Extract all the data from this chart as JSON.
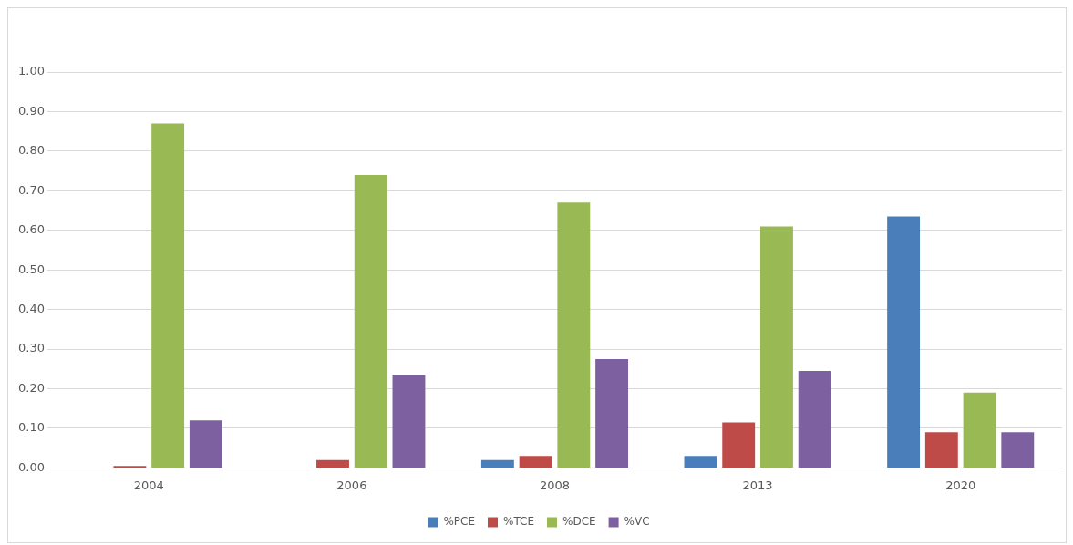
{
  "chart_data": {
    "type": "bar",
    "categories": [
      "2004",
      "2006",
      "2008",
      "2013",
      "2020"
    ],
    "series": [
      {
        "name": "%PCE",
        "color": "#4a7ebb",
        "values": [
          0,
          0,
          0.02,
          0.03,
          0.635
        ]
      },
      {
        "name": "%TCE",
        "color": "#be4b48",
        "values": [
          0.005,
          0.02,
          0.03,
          0.115,
          0.09
        ]
      },
      {
        "name": "%DCE",
        "color": "#98b954",
        "values": [
          0.87,
          0.74,
          0.67,
          0.61,
          0.19
        ]
      },
      {
        "name": "%VC",
        "color": "#7d60a0",
        "values": [
          0.12,
          0.235,
          0.275,
          0.245,
          0.09
        ]
      }
    ],
    "ylim": [
      0,
      1
    ],
    "yticks": [
      {
        "value": 0,
        "label": "0.00"
      },
      {
        "value": 0.1,
        "label": "0.10"
      },
      {
        "value": 0.2,
        "label": "0.20"
      },
      {
        "value": 0.3,
        "label": "0.30"
      },
      {
        "value": 0.4,
        "label": "0.40"
      },
      {
        "value": 0.5,
        "label": "0.50"
      },
      {
        "value": 0.6,
        "label": "0.60"
      },
      {
        "value": 0.7,
        "label": "0.70"
      },
      {
        "value": 0.8,
        "label": "0.80"
      },
      {
        "value": 0.9,
        "label": "0.90"
      },
      {
        "value": 1,
        "label": "1.00"
      }
    ],
    "grid": "y",
    "legend": "bottom"
  }
}
